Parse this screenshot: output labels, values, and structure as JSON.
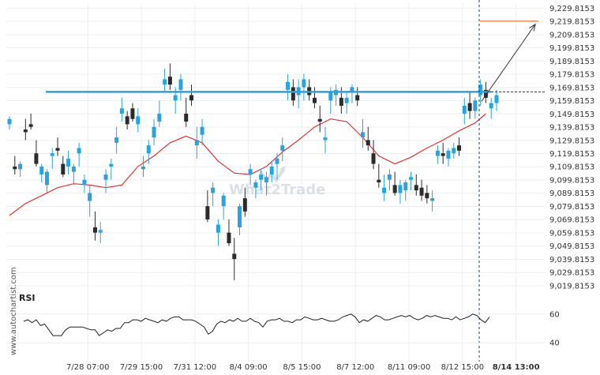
{
  "watermark": {
    "brand": "What2Trade"
  },
  "side_credit": "www.autochartist.com",
  "chart_data": [
    {
      "type": "candlestick",
      "ylim": [
        9015.0,
        9233.0
      ],
      "price_ticks": [
        "9,229.8153",
        "9,219.8153",
        "9,209.8153",
        "9,199.8153",
        "9,189.8153",
        "9,179.8153",
        "9,169.8153",
        "9,159.8153",
        "9,149.8153",
        "9,139.8153",
        "9,129.8153",
        "9,119.8153",
        "9,109.8153",
        "9,099.8153",
        "9,089.8153",
        "9,079.8153",
        "9,069.8153",
        "9,059.8153",
        "9,049.8153",
        "9,039.8153",
        "9,029.8153",
        "9,019.8153"
      ],
      "price_tick_values": [
        9229.8153,
        9219.8153,
        9209.8153,
        9199.8153,
        9189.8153,
        9179.8153,
        9169.8153,
        9159.8153,
        9149.8153,
        9139.8153,
        9129.8153,
        9119.8153,
        9109.8153,
        9099.8153,
        9089.8153,
        9079.8153,
        9069.8153,
        9059.8153,
        9049.8153,
        9039.8153,
        9029.8153,
        9019.8153
      ],
      "x_labels": [
        {
          "text": "7/28 07:00",
          "bar": 8
        },
        {
          "text": "7/29 15:00",
          "bar": 18
        },
        {
          "text": "7/31 12:00",
          "bar": 28
        },
        {
          "text": "8/4 09:00",
          "bar": 38
        },
        {
          "text": "8/5 15:00",
          "bar": 48
        },
        {
          "text": "8/7 12:00",
          "bar": 58
        },
        {
          "text": "8/11 09:00",
          "bar": 68
        },
        {
          "text": "8/12 15:00",
          "bar": 78
        },
        {
          "text": "8/14 13:00",
          "bar": 88,
          "bold": true
        }
      ],
      "resistance_level": 9166.5,
      "target_level": 9220.0,
      "current_price": 9166.5,
      "colors": {
        "bull": "#29a3e0",
        "bear": "#2b2b2b",
        "ma": "#e8322f",
        "resistance": "#29a3e0",
        "target": "#e87a3a",
        "projection": "#333333"
      },
      "candles": [
        [
          9142,
          9148,
          9138,
          9146
        ],
        [
          9110,
          9118,
          9104,
          9108
        ],
        [
          9108,
          9114,
          9102,
          9112
        ],
        [
          9138,
          9146,
          9130,
          9136
        ],
        [
          9142,
          9150,
          9138,
          9140
        ],
        [
          9120,
          9130,
          9110,
          9112
        ],
        [
          9104,
          9112,
          9098,
          9110
        ],
        [
          9096,
          9108,
          9090,
          9106
        ],
        [
          9118,
          9124,
          9108,
          9120
        ],
        [
          9124,
          9132,
          9118,
          9122
        ],
        [
          9112,
          9118,
          9102,
          9104
        ],
        [
          9110,
          9122,
          9104,
          9116
        ],
        [
          9106,
          9112,
          9096,
          9110
        ],
        [
          9120,
          9128,
          9110,
          9124
        ],
        [
          9096,
          9104,
          9090,
          9100
        ],
        [
          9084,
          9096,
          9072,
          9090
        ],
        [
          9064,
          9076,
          9054,
          9060
        ],
        [
          9060,
          9068,
          9052,
          9062
        ],
        [
          9100,
          9108,
          9090,
          9104
        ],
        [
          9110,
          9116,
          9100,
          9112
        ],
        [
          9128,
          9140,
          9120,
          9132
        ],
        [
          9150,
          9162,
          9144,
          9154
        ],
        [
          9148,
          9152,
          9138,
          9142
        ],
        [
          9154,
          9158,
          9144,
          9146
        ],
        [
          9142,
          9154,
          9136,
          9148
        ],
        [
          9108,
          9118,
          9102,
          9110
        ],
        [
          9120,
          9130,
          9112,
          9126
        ],
        [
          9132,
          9146,
          9126,
          9140
        ],
        [
          9144,
          9160,
          9140,
          9150
        ],
        [
          9172,
          9184,
          9166,
          9176
        ],
        [
          9178,
          9188,
          9168,
          9172
        ],
        [
          9160,
          9170,
          9150,
          9164
        ],
        [
          9168,
          9180,
          9160,
          9176
        ],
        [
          9150,
          9162,
          9140,
          9144
        ],
        [
          9164,
          9172,
          9156,
          9160
        ],
        [
          9126,
          9140,
          9116,
          9130
        ],
        [
          9134,
          9146,
          9126,
          9140
        ],
        [
          9080,
          9092,
          9068,
          9070
        ],
        [
          9090,
          9098,
          9080,
          9094
        ],
        [
          9060,
          9070,
          9050,
          9066
        ],
        [
          9080,
          9090,
          9070,
          9088
        ],
        [
          9060,
          9070,
          9050,
          9052
        ],
        [
          9044,
          9056,
          9024,
          9040
        ],
        [
          9064,
          9082,
          9058,
          9080
        ],
        [
          9086,
          9094,
          9072,
          9076
        ],
        [
          9104,
          9112,
          9096,
          9108
        ],
        [
          9094,
          9100,
          9086,
          9098
        ],
        [
          9100,
          9108,
          9092,
          9104
        ],
        [
          9098,
          9106,
          9088,
          9102
        ],
        [
          9104,
          9114,
          9098,
          9110
        ],
        [
          9112,
          9120,
          9100,
          9116
        ],
        [
          9122,
          9132,
          9114,
          9126
        ],
        [
          9168,
          9180,
          9160,
          9174
        ],
        [
          9170,
          9176,
          9156,
          9160
        ],
        [
          9164,
          9176,
          9154,
          9170
        ],
        [
          9170,
          9180,
          9160,
          9176
        ],
        [
          9170,
          9176,
          9160,
          9164
        ],
        [
          9162,
          9170,
          9154,
          9158
        ],
        [
          9146,
          9156,
          9136,
          9144
        ],
        [
          9130,
          9140,
          9120,
          9132
        ],
        [
          9160,
          9170,
          9150,
          9166
        ],
        [
          9164,
          9172,
          9156,
          9168
        ],
        [
          9162,
          9170,
          9150,
          9156
        ],
        [
          9158,
          9166,
          9150,
          9162
        ],
        [
          9166,
          9172,
          9158,
          9170
        ],
        [
          9164,
          9170,
          9156,
          9160
        ],
        [
          9132,
          9146,
          9124,
          9136
        ],
        [
          9130,
          9140,
          9122,
          9126
        ],
        [
          9120,
          9130,
          9108,
          9112
        ],
        [
          9100,
          9112,
          9094,
          9098
        ],
        [
          9090,
          9104,
          9084,
          9094
        ],
        [
          9100,
          9108,
          9092,
          9104
        ],
        [
          9096,
          9106,
          9088,
          9090
        ],
        [
          9090,
          9100,
          9082,
          9096
        ],
        [
          9092,
          9100,
          9084,
          9098
        ],
        [
          9100,
          9106,
          9092,
          9102
        ],
        [
          9096,
          9104,
          9088,
          9092
        ],
        [
          9094,
          9100,
          9084,
          9088
        ],
        [
          9090,
          9096,
          9082,
          9086
        ],
        [
          9084,
          9092,
          9076,
          9086
        ],
        [
          9118,
          9126,
          9112,
          9122
        ],
        [
          9120,
          9128,
          9112,
          9118
        ],
        [
          9116,
          9124,
          9110,
          9122
        ],
        [
          9120,
          9128,
          9116,
          9124
        ],
        [
          9126,
          9132,
          9118,
          9122
        ],
        [
          9150,
          9162,
          9142,
          9156
        ],
        [
          9158,
          9166,
          9146,
          9152
        ],
        [
          9152,
          9162,
          9146,
          9160
        ],
        [
          9164,
          9176,
          9156,
          9172
        ],
        [
          9168,
          9174,
          9158,
          9162
        ],
        [
          9154,
          9162,
          9146,
          9158
        ],
        [
          9158,
          9168,
          9152,
          9164
        ]
      ],
      "moving_average": [
        [
          0,
          9073
        ],
        [
          3,
          9082
        ],
        [
          6,
          9088
        ],
        [
          9,
          9094
        ],
        [
          12,
          9097
        ],
        [
          15,
          9096
        ],
        [
          18,
          9094
        ],
        [
          21,
          9096
        ],
        [
          24,
          9110
        ],
        [
          27,
          9118
        ],
        [
          30,
          9128
        ],
        [
          33,
          9133
        ],
        [
          36,
          9128
        ],
        [
          39,
          9114
        ],
        [
          42,
          9105
        ],
        [
          45,
          9104
        ],
        [
          48,
          9110
        ],
        [
          51,
          9121
        ],
        [
          54,
          9130
        ],
        [
          57,
          9140
        ],
        [
          60,
          9146
        ],
        [
          63,
          9144
        ],
        [
          66,
          9132
        ],
        [
          69,
          9118
        ],
        [
          72,
          9112
        ],
        [
          75,
          9117
        ],
        [
          78,
          9124
        ],
        [
          81,
          9130
        ],
        [
          84,
          9137
        ],
        [
          87,
          9143
        ],
        [
          89,
          9150
        ]
      ],
      "rsi": {
        "label": "RSI",
        "ticks": [
          "60",
          "40"
        ],
        "tick_values": [
          60,
          40
        ],
        "ylim": [
          33,
          67
        ],
        "values": [
          55,
          56,
          54,
          56,
          52,
          53,
          49,
          45,
          45,
          45,
          49,
          51,
          51,
          51,
          51,
          50,
          49,
          49,
          45,
          47,
          49,
          48,
          50,
          50,
          54,
          54,
          56,
          56,
          55,
          57,
          56,
          55,
          54,
          56,
          55,
          57,
          58,
          58,
          56,
          56,
          56,
          55,
          53,
          51,
          46,
          48,
          53,
          55,
          54,
          56,
          55,
          57,
          55,
          55,
          57,
          55,
          54,
          51,
          55,
          56,
          56,
          57,
          55,
          55,
          54,
          56,
          56,
          58,
          57,
          56,
          56,
          57,
          56,
          55,
          55,
          56,
          58,
          59,
          60,
          58,
          54,
          56,
          55,
          57,
          59,
          58,
          56,
          56,
          57,
          58,
          59,
          58,
          59,
          57,
          56,
          57,
          59,
          58,
          59,
          58,
          57,
          57,
          56,
          58,
          56,
          57,
          58,
          60,
          59,
          56,
          54,
          58
        ]
      }
    }
  ]
}
